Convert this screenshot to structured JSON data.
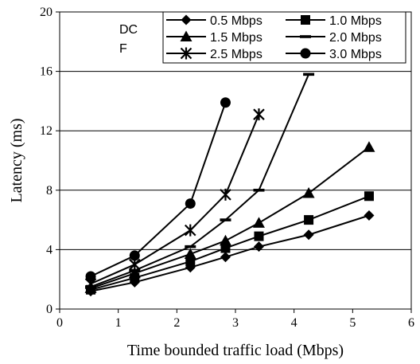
{
  "chart_data": {
    "type": "line",
    "title": "",
    "xlabel": "Time bounded traffic load (Mbps)",
    "ylabel": "Latency (ms)",
    "xlim": [
      0,
      6
    ],
    "ylim": [
      0,
      20
    ],
    "x_ticks": [
      "0",
      "1",
      "2",
      "3",
      "4",
      "5",
      "6"
    ],
    "y_ticks": [
      "0",
      "4",
      "8",
      "12",
      "16",
      "20"
    ],
    "grid": "horizontal",
    "legend_position": "top-right",
    "annotations": [
      "DC",
      "F"
    ],
    "series": [
      {
        "name": "0.5 Mbps",
        "marker": "diamond",
        "x": [
          0.53,
          1.28,
          2.23,
          2.83,
          3.4,
          4.25,
          5.28
        ],
        "y": [
          1.2,
          1.8,
          2.8,
          3.5,
          4.2,
          5.0,
          6.3
        ]
      },
      {
        "name": "1.0 Mbps",
        "marker": "square",
        "x": [
          0.53,
          1.28,
          2.23,
          2.83,
          3.4,
          4.25,
          5.28
        ],
        "y": [
          1.3,
          2.1,
          3.2,
          4.1,
          4.9,
          6.0,
          7.6
        ]
      },
      {
        "name": "1.5 Mbps",
        "marker": "triangle",
        "x": [
          0.53,
          1.28,
          2.23,
          2.83,
          3.4,
          4.25,
          5.28
        ],
        "y": [
          1.4,
          2.4,
          3.7,
          4.6,
          5.8,
          7.8,
          10.9
        ]
      },
      {
        "name": "2.0 Mbps",
        "marker": "dash",
        "x": [
          0.53,
          1.28,
          2.23,
          2.83,
          3.4,
          4.25
        ],
        "y": [
          1.5,
          2.6,
          4.2,
          6.0,
          8.0,
          15.8
        ]
      },
      {
        "name": "2.5 Mbps",
        "marker": "star",
        "x": [
          0.53,
          1.28,
          2.23,
          2.83,
          3.4
        ],
        "y": [
          1.7,
          3.0,
          5.3,
          7.7,
          13.1
        ]
      },
      {
        "name": "3.0 Mbps",
        "marker": "circle",
        "x": [
          0.53,
          1.28,
          2.23,
          2.83
        ],
        "y": [
          2.2,
          3.6,
          7.1,
          13.9
        ]
      }
    ]
  }
}
